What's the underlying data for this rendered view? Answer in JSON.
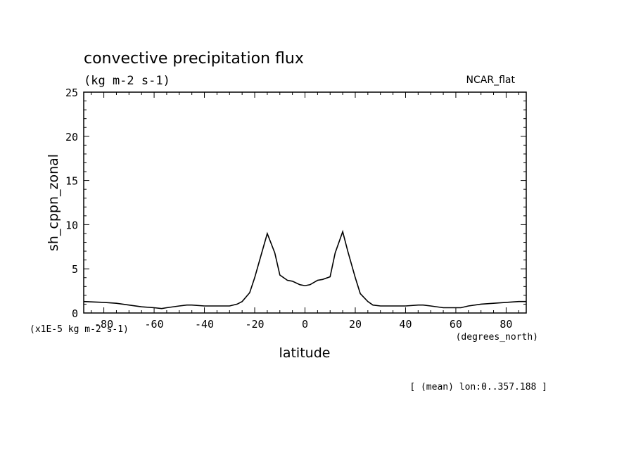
{
  "header": {
    "title": "convective precipitation flux",
    "units": "(kg m-2 s-1)",
    "model": "NCAR_flat"
  },
  "footer": {
    "note": "[ (mean) lon:0..357.188 ]"
  },
  "chart_data": {
    "type": "line",
    "xlabel": "latitude",
    "x_unit": "(degrees_north)",
    "ylabel": "sh_cppn_zonal",
    "y_scale_note": "(x1E-5 kg m-2 s-1)",
    "xlim": [
      -88,
      88
    ],
    "ylim": [
      0,
      25
    ],
    "x_ticks": [
      -80,
      -60,
      -40,
      -20,
      0,
      20,
      40,
      60,
      80
    ],
    "x_tick_labels": [
      "-80",
      "-60",
      "-40",
      "-20",
      "0",
      "20",
      "40",
      "60",
      "80"
    ],
    "y_ticks": [
      0,
      5,
      10,
      15,
      20,
      25
    ],
    "y_tick_labels": [
      "0",
      "5",
      "10",
      "15",
      "20",
      "25"
    ],
    "grid": false,
    "line_color": "#000000",
    "series": [
      {
        "x": [
          -88,
          -80,
          -75,
          -70,
          -65,
          -60,
          -57,
          -55,
          -50,
          -47,
          -45,
          -40,
          -35,
          -30,
          -27,
          -25,
          -22,
          -20,
          -17,
          -15,
          -12,
          -10,
          -7,
          -5,
          -2,
          0,
          2,
          5,
          7,
          10,
          12,
          15,
          17,
          20,
          22,
          25,
          27,
          30,
          35,
          40,
          45,
          47,
          50,
          55,
          57,
          60,
          62,
          65,
          70,
          75,
          80,
          85,
          88
        ],
        "y": [
          1.3,
          1.2,
          1.1,
          0.9,
          0.7,
          0.6,
          0.5,
          0.6,
          0.8,
          0.9,
          0.9,
          0.8,
          0.8,
          0.8,
          1.0,
          1.3,
          2.3,
          4.0,
          7.0,
          9.0,
          6.8,
          4.3,
          3.7,
          3.6,
          3.2,
          3.1,
          3.2,
          3.7,
          3.8,
          4.1,
          6.8,
          9.2,
          7.0,
          4.0,
          2.2,
          1.3,
          0.9,
          0.8,
          0.8,
          0.8,
          0.9,
          0.9,
          0.8,
          0.6,
          0.6,
          0.6,
          0.6,
          0.8,
          1.0,
          1.1,
          1.2,
          1.3,
          1.3
        ]
      }
    ]
  }
}
